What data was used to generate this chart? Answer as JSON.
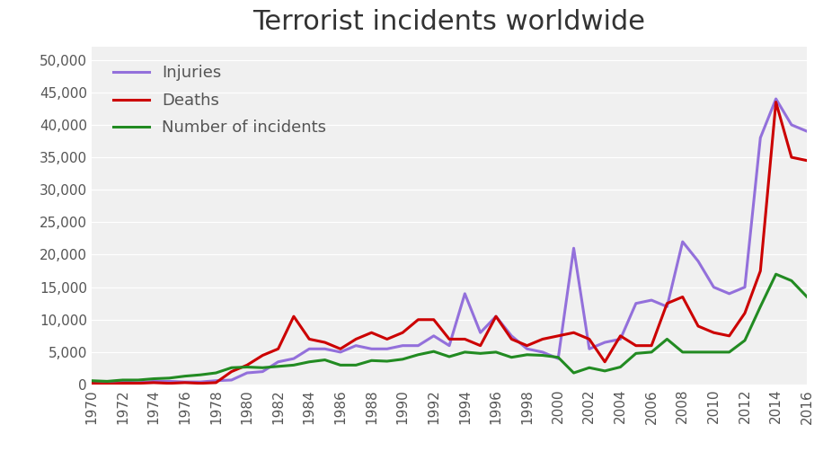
{
  "title": "Terrorist incidents worldwide",
  "years": [
    1970,
    1971,
    1972,
    1973,
    1974,
    1975,
    1976,
    1977,
    1978,
    1979,
    1980,
    1981,
    1982,
    1983,
    1984,
    1985,
    1986,
    1987,
    1988,
    1989,
    1990,
    1991,
    1992,
    1993,
    1994,
    1995,
    1996,
    1997,
    1998,
    1999,
    2000,
    2001,
    2002,
    2003,
    2004,
    2005,
    2006,
    2007,
    2008,
    2009,
    2010,
    2011,
    2012,
    2013,
    2014,
    2015,
    2016
  ],
  "injuries": [
    200,
    200,
    400,
    300,
    500,
    500,
    400,
    400,
    600,
    700,
    1800,
    2000,
    3500,
    4000,
    5500,
    5500,
    5000,
    6000,
    5500,
    5500,
    6000,
    6000,
    7500,
    6000,
    14000,
    8000,
    10500,
    7500,
    5500,
    5000,
    4000,
    21000,
    5500,
    6500,
    7000,
    12500,
    13000,
    12000,
    22000,
    19000,
    15000,
    14000,
    15000,
    38000,
    44000,
    40000,
    39000
  ],
  "deaths": [
    200,
    100,
    200,
    200,
    300,
    200,
    300,
    200,
    300,
    2000,
    3000,
    4500,
    5500,
    10500,
    7000,
    6500,
    5500,
    7000,
    8000,
    7000,
    8000,
    10000,
    10000,
    7000,
    7000,
    6000,
    10500,
    7000,
    6000,
    7000,
    7500,
    8000,
    7000,
    3500,
    7500,
    6000,
    6000,
    12500,
    13500,
    9000,
    8000,
    7500,
    11000,
    17500,
    43500,
    35000,
    34500
  ],
  "incidents": [
    600,
    500,
    700,
    700,
    900,
    1000,
    1300,
    1500,
    1800,
    2600,
    2700,
    2600,
    2800,
    3000,
    3500,
    3800,
    3000,
    3000,
    3700,
    3600,
    3900,
    4600,
    5100,
    4300,
    5000,
    4800,
    5000,
    4200,
    4600,
    4500,
    4200,
    1800,
    2600,
    2100,
    2700,
    4800,
    5000,
    7000,
    5000,
    5000,
    5000,
    5000,
    6800,
    12000,
    17000,
    16000,
    13500
  ],
  "injuries_color": "#9370DB",
  "deaths_color": "#CC0000",
  "incidents_color": "#228B22",
  "background_color": "#ffffff",
  "plot_bg_color": "#f0f0f0",
  "grid_color": "#ffffff",
  "text_color": "#555555",
  "ylim": [
    0,
    52000
  ],
  "yticks": [
    0,
    5000,
    10000,
    15000,
    20000,
    25000,
    30000,
    35000,
    40000,
    45000,
    50000
  ],
  "title_fontsize": 22,
  "legend_fontsize": 13,
  "tick_fontsize": 11,
  "line_width": 2.2
}
